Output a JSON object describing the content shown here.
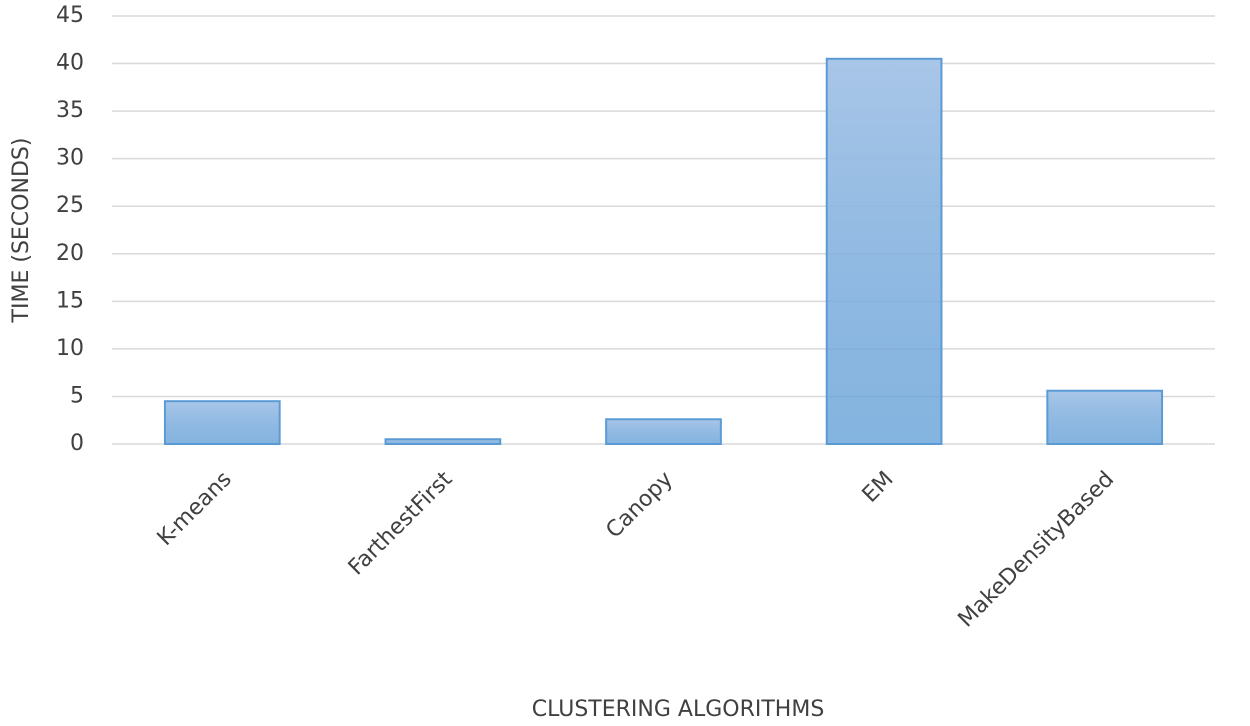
{
  "chart_data": {
    "type": "bar",
    "x_label": "CLUSTERING ALGORITHMS",
    "y_label": "TIME (SECONDS)",
    "categories": [
      "K-means",
      "FarthestFirst",
      "Canopy",
      "EM",
      "MakeDensityBased"
    ],
    "values": [
      4.5,
      0.5,
      2.6,
      40.5,
      5.6
    ],
    "color": "#a9c6e8",
    "edge_color": "#5b9bd5",
    "ylim": [
      0,
      45
    ],
    "yticks": [
      0,
      5,
      10,
      15,
      20,
      25,
      30,
      35,
      40,
      45
    ],
    "grid": true
  }
}
